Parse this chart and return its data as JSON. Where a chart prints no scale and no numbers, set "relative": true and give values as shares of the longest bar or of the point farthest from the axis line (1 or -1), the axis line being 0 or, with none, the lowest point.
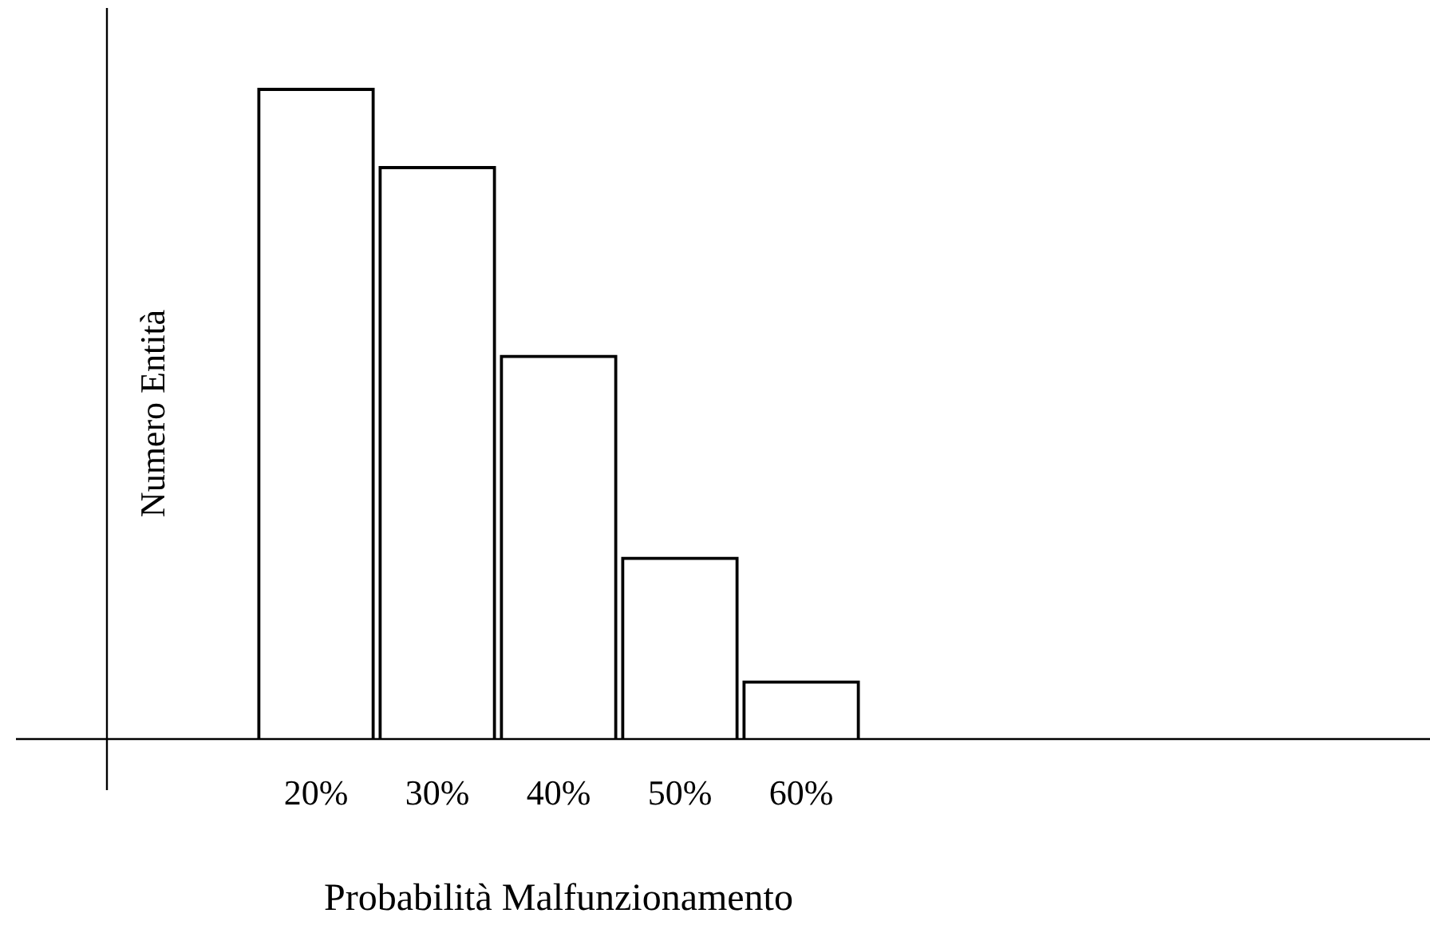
{
  "chart_data": {
    "type": "bar",
    "relative": true,
    "xlabel": "Probabilità Malfunzionamento",
    "ylabel": "Numero Entità",
    "categories": [
      "20%",
      "30%",
      "40%",
      "50%",
      "60%"
    ],
    "values": [
      1,
      0.88,
      0.59,
      0.28,
      0.09
    ],
    "color": "#000000",
    "grid": false,
    "legend": false
  }
}
